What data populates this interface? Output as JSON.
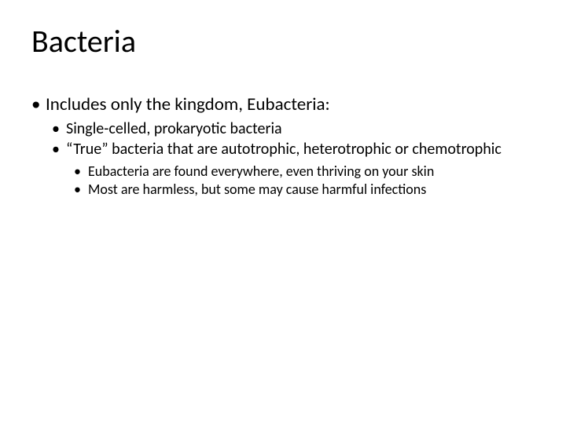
{
  "slide": {
    "title": "Bacteria",
    "level1": {
      "item0": "Includes only the kingdom, Eubacteria:"
    },
    "level2": {
      "item0": "Single-celled, prokaryotic bacteria",
      "item1": "“True” bacteria that are autotrophic, heterotrophic or chemotrophic"
    },
    "level3": {
      "item0": "Eubacteria are found everywhere, even thriving on your skin",
      "item1": "Most are harmless, but some may cause harmful infections"
    }
  },
  "style": {
    "background_color": "#ffffff",
    "text_color": "#000000",
    "title_fontsize": 40,
    "l1_fontsize": 23,
    "l2_fontsize": 20,
    "l3_fontsize": 18,
    "font_family": "Calibri"
  }
}
